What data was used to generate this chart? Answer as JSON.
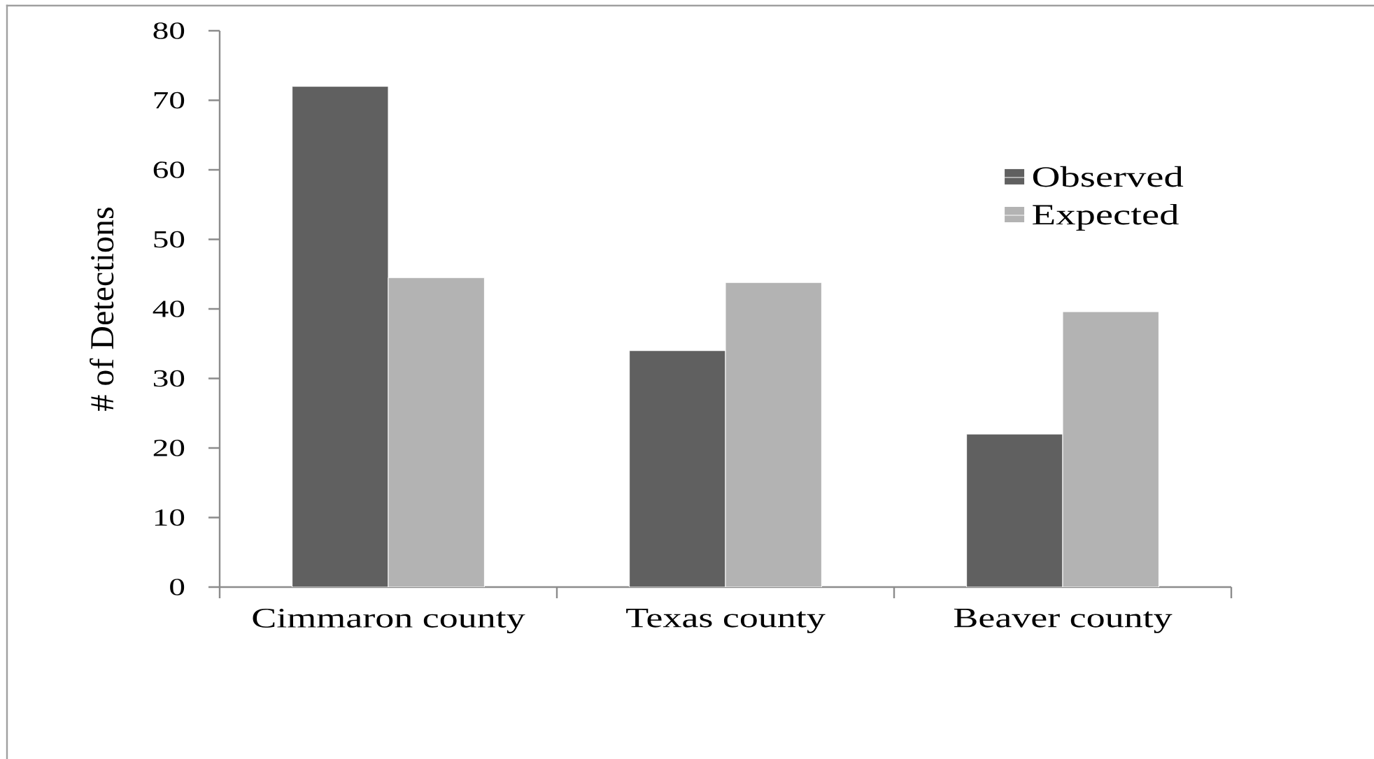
{
  "chart_data": {
    "type": "bar",
    "ylabel": "# of Detections",
    "categories": [
      "Cimmaron county",
      "Texas county",
      "Beaver county"
    ],
    "series": [
      {
        "name": "Observed",
        "color": "#606060",
        "values": [
          72,
          34,
          22
        ]
      },
      {
        "name": "Expected",
        "color": "#b3b3b3",
        "values": [
          44.5,
          43.8,
          39.6
        ]
      }
    ],
    "ylim": [
      0,
      80
    ],
    "yticks": [
      0,
      10,
      20,
      30,
      40,
      50,
      60,
      70,
      80
    ],
    "legend": "top right"
  }
}
